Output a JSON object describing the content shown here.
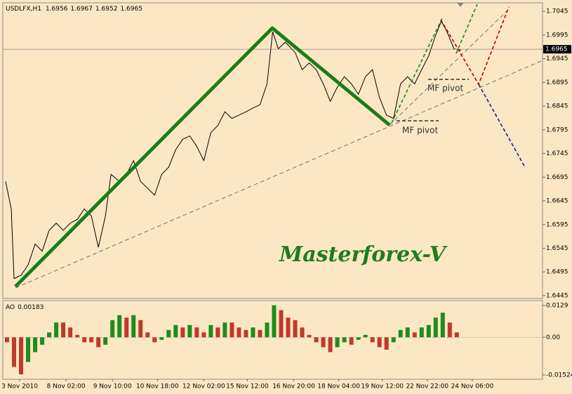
{
  "chart_data": [
    {
      "type": "line",
      "title": "USDLFX,H1",
      "ohlc": [
        1.6956,
        1.6967,
        1.6952,
        1.6965
      ],
      "color": "#000000",
      "x": [
        2,
        6,
        8,
        13,
        18,
        23,
        28,
        33,
        38,
        43,
        48,
        53,
        58,
        63,
        68,
        73,
        77,
        83,
        88,
        93,
        98,
        103,
        108,
        113,
        118,
        123,
        128,
        133,
        138,
        143,
        148,
        153,
        158,
        163,
        168,
        173,
        178,
        183,
        188,
        192,
        196,
        201,
        208,
        213,
        218,
        223,
        228,
        233,
        238,
        243,
        248,
        253,
        258,
        263,
        268,
        273,
        278,
        283,
        288,
        293,
        298,
        303,
        308,
        312,
        316,
        321,
        326
      ],
      "values": [
        1.6686,
        1.6628,
        1.6481,
        1.6488,
        1.651,
        1.6554,
        1.6539,
        1.6583,
        1.6598,
        1.6583,
        1.6598,
        1.6606,
        1.6628,
        1.6613,
        1.6547,
        1.6613,
        1.6701,
        1.6686,
        1.6701,
        1.673,
        1.6686,
        1.6672,
        1.6657,
        1.6701,
        1.6716,
        1.6753,
        1.6775,
        1.6782,
        1.676,
        1.673,
        1.6789,
        1.6804,
        1.6833,
        1.6819,
        1.6826,
        1.6833,
        1.6841,
        1.6848,
        1.6892,
        1.7002,
        1.6966,
        1.698,
        1.6958,
        1.6922,
        1.6936,
        1.6922,
        1.6892,
        1.6855,
        1.6885,
        1.6907,
        1.6892,
        1.687,
        1.6907,
        1.6922,
        1.6863,
        1.6826,
        1.6819,
        1.6892,
        1.6907,
        1.6892,
        1.6922,
        1.6951,
        1.6995,
        1.7024,
        1.7002,
        1.6966,
        1.6963
      ],
      "current_price": 1.6965,
      "xlim": [
        0,
        384
      ],
      "ylim": [
        1.6439,
        1.7063
      ],
      "yticks": [
        1.7045,
        1.6995,
        1.6945,
        1.6895,
        1.6845,
        1.6795,
        1.6745,
        1.6695,
        1.6645,
        1.6595,
        1.6545,
        1.6495,
        1.6445
      ],
      "annotations": [
        "MF pivot",
        "MF pivot"
      ],
      "watermark": "Masterforex-V"
    },
    {
      "type": "bar",
      "title": "AO",
      "value": 0.00183,
      "up_color": "#1e8c1e",
      "down_color": "#c0392b",
      "x": [
        3,
        8,
        13,
        18,
        23,
        28,
        33,
        38,
        43,
        48,
        53,
        58,
        63,
        68,
        73,
        78,
        83,
        88,
        93,
        98,
        103,
        108,
        113,
        118,
        123,
        128,
        133,
        138,
        143,
        148,
        153,
        158,
        163,
        168,
        173,
        178,
        183,
        188,
        193,
        198,
        203,
        208,
        213,
        218,
        223,
        228,
        233,
        238,
        243,
        248,
        253,
        258,
        263,
        268,
        273,
        278,
        283,
        288,
        293,
        298,
        303,
        308,
        313,
        318,
        323
      ],
      "values": [
        -0.002,
        -0.012,
        -0.015,
        -0.01,
        -0.006,
        -0.003,
        0.002,
        0.006,
        0.006,
        0.004,
        0.001,
        -0.002,
        -0.002,
        -0.004,
        -0.003,
        0.007,
        0.009,
        0.008,
        0.009,
        0.007,
        0.002,
        -0.002,
        -0.001,
        0.003,
        0.005,
        0.004,
        0.005,
        0.004,
        0.002,
        0.005,
        0.004,
        0.006,
        0.006,
        0.004,
        0.003,
        0.004,
        0.003,
        0.006,
        0.013,
        0.011,
        0.008,
        0.007,
        0.004,
        0.001,
        -0.002,
        -0.004,
        -0.006,
        -0.004,
        -0.002,
        -0.003,
        -0.001,
        0.001,
        -0.002,
        -0.004,
        -0.005,
        -0.002,
        0.003,
        0.004,
        0.002,
        0.004,
        0.005,
        0.008,
        0.01,
        0.006,
        0.002
      ],
      "xlim": [
        0,
        384
      ],
      "ylim": [
        -0.017,
        0.0149
      ],
      "yticks": [
        0.0129,
        {
          "value": 0,
          "label": "0.00"
        },
        -0.01524
      ],
      "xticks": [
        {
          "value": 12,
          "label": "3 Nov 2010"
        },
        {
          "value": 45,
          "label": "8 Nov 02:00"
        },
        {
          "value": 78,
          "label": "9 Nov 10:00"
        },
        {
          "value": 110,
          "label": "10 Nov 18:00"
        },
        {
          "value": 143,
          "label": "12 Nov 02:00"
        },
        {
          "value": 174,
          "label": "15 Nov 12:00"
        },
        {
          "value": 207,
          "label": "16 Nov 20:00"
        },
        {
          "value": 239,
          "label": "18 Nov 04:00"
        },
        {
          "value": 270,
          "label": "19 Nov 12:00"
        },
        {
          "value": 302,
          "label": "22 Nov 22:00"
        },
        {
          "value": 334,
          "label": "24 Nov 06:00"
        }
      ]
    }
  ]
}
